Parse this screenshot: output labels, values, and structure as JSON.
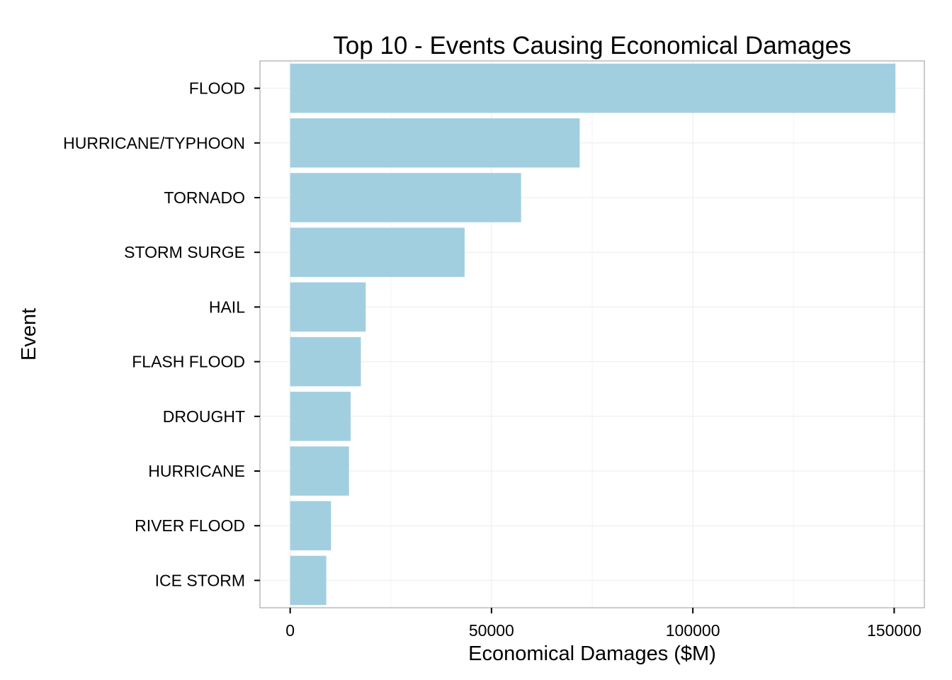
{
  "chart_data": {
    "type": "bar",
    "orientation": "horizontal",
    "title": "Top 10 - Events Causing Economical Damages",
    "xlabel": "Economical Damages ($M)",
    "ylabel": "Event",
    "categories": [
      "FLOOD",
      "HURRICANE/TYPHOON",
      "TORNADO",
      "STORM SURGE",
      "HAIL",
      "FLASH FLOOD",
      "DROUGHT",
      "HURRICANE",
      "RIVER FLOOD",
      "ICE STORM"
    ],
    "values": [
      150320,
      71914,
      57352,
      43324,
      18758,
      17562,
      15019,
      14610,
      10148,
      8967
    ],
    "xlim": [
      -7500,
      157500
    ],
    "xticks": [
      0,
      50000,
      100000,
      150000
    ],
    "xtick_labels": [
      "0",
      "50000",
      "100000",
      "150000"
    ],
    "grid": true,
    "bar_color": "#a1cfe0",
    "grid_color": "#ebebeb",
    "border_color": "#999999"
  }
}
